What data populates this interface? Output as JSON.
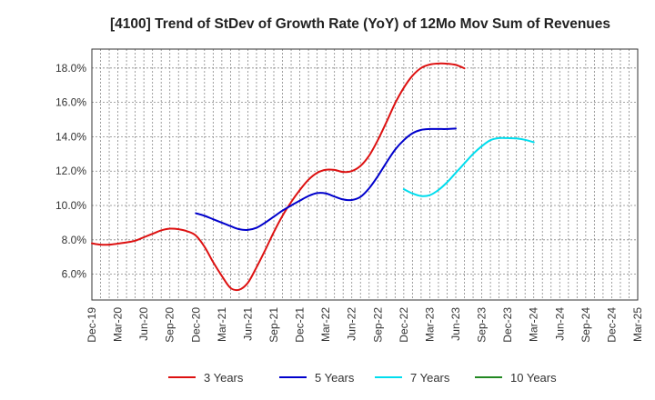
{
  "chart_data": {
    "type": "line",
    "title": "[4100]  Trend of StDev of Growth Rate (YoY) of 12Mo Mov Sum of Revenues",
    "xlabel": "",
    "ylabel": "",
    "ylim": [
      4.5,
      19.1
    ],
    "y_ticks": [
      6.0,
      8.0,
      10.0,
      12.0,
      14.0,
      16.0,
      18.0
    ],
    "y_tick_labels": [
      "6.0%",
      "8.0%",
      "10.0%",
      "12.0%",
      "14.0%",
      "16.0%",
      "18.0%"
    ],
    "x_tick_labels": [
      "Dec-19",
      "Mar-20",
      "Jun-20",
      "Sep-20",
      "Dec-20",
      "Mar-21",
      "Jun-21",
      "Sep-21",
      "Dec-21",
      "Mar-22",
      "Jun-22",
      "Sep-22",
      "Dec-22",
      "Mar-23",
      "Jun-23",
      "Sep-23",
      "Dec-23",
      "Mar-24",
      "Jun-24",
      "Sep-24",
      "Dec-24",
      "Mar-25"
    ],
    "grid": true,
    "legend_position": "bottom",
    "series": [
      {
        "name": "3 Years",
        "color": "#dd1111",
        "start_index": 0,
        "values": [
          7.8,
          7.72,
          7.72,
          7.78,
          7.85,
          7.95,
          8.15,
          8.35,
          8.55,
          8.65,
          8.62,
          8.5,
          8.25,
          7.6,
          6.7,
          5.9,
          5.2,
          5.1,
          5.5,
          6.4,
          7.4,
          8.45,
          9.4,
          10.2,
          10.9,
          11.5,
          11.9,
          12.08,
          12.07,
          11.95,
          12.0,
          12.3,
          12.9,
          13.8,
          14.85,
          15.95,
          16.85,
          17.55,
          18.0,
          18.2,
          18.26,
          18.25,
          18.18,
          17.98
        ]
      },
      {
        "name": "5 Years",
        "color": "#0000cc",
        "start_index": 12,
        "values": [
          9.55,
          9.4,
          9.2,
          9.0,
          8.8,
          8.62,
          8.58,
          8.7,
          9.0,
          9.35,
          9.7,
          10.0,
          10.28,
          10.55,
          10.72,
          10.7,
          10.52,
          10.35,
          10.32,
          10.5,
          11.0,
          11.7,
          12.5,
          13.25,
          13.8,
          14.2,
          14.4,
          14.45,
          14.45,
          14.45,
          14.48
        ]
      },
      {
        "name": "7 Years",
        "color": "#00ddee",
        "start_index": 36,
        "values": [
          10.95,
          10.7,
          10.55,
          10.6,
          10.9,
          11.35,
          11.9,
          12.45,
          13.0,
          13.45,
          13.8,
          13.92,
          13.92,
          13.9,
          13.82,
          13.68
        ]
      },
      {
        "name": "10 Years",
        "color": "#228822",
        "start_index": 0,
        "values": []
      }
    ]
  }
}
